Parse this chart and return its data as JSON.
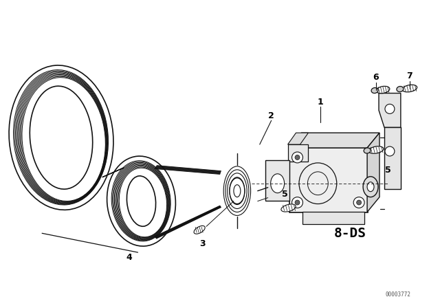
{
  "background_color": "#ffffff",
  "fig_width": 6.4,
  "fig_height": 4.48,
  "dpi": 100,
  "watermark": "00003772",
  "label_8ds": "8-DS",
  "line_color": "#111111",
  "text_color": "#000000",
  "belt_color": "#111111",
  "part_numbers": [
    "1",
    "2",
    "3",
    "4",
    "5",
    "5",
    "6",
    "7"
  ]
}
